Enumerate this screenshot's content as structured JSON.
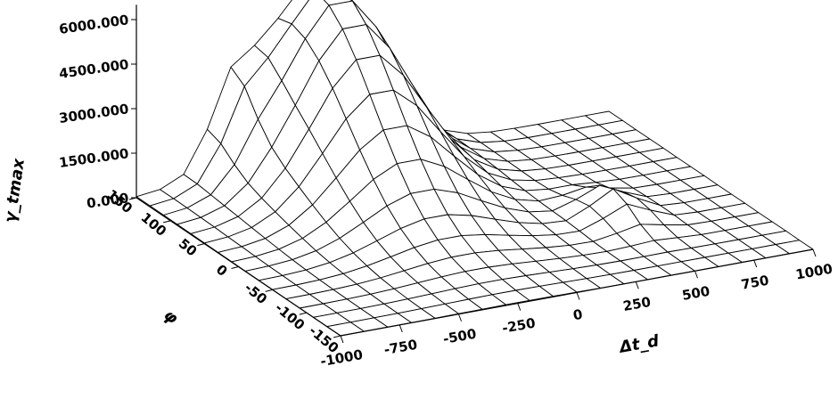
{
  "chart_data": {
    "type": "surface",
    "title": "",
    "zlabel": "γ_tmax",
    "xlabel": "Δt_d",
    "ylabel": "φ",
    "zlim": [
      0,
      6500
    ],
    "xlim": [
      -1000,
      1000
    ],
    "ylim": [
      -150,
      150
    ],
    "z_ticks": [
      "0.000",
      "1500.000",
      "3000.000",
      "4500.000",
      "6000.000"
    ],
    "x_ticks": [
      "-1000",
      "-750",
      "-500",
      "-250",
      "0",
      "250",
      "500",
      "750",
      "1000"
    ],
    "y_ticks": [
      "-150",
      "-100",
      "-50",
      "0",
      "50",
      "100",
      "150"
    ],
    "grid_x": [
      -1000,
      -900,
      -800,
      -700,
      -600,
      -500,
      -400,
      -300,
      -200,
      -100,
      0,
      100,
      200,
      300,
      400,
      500,
      600,
      700,
      800,
      900,
      1000
    ],
    "grid_y": [
      -150,
      -130,
      -110,
      -90,
      -70,
      -50,
      -30,
      -10,
      10,
      30,
      50,
      70,
      90,
      110,
      130,
      150
    ],
    "peak": {
      "x": -250,
      "y": 130,
      "z": 6400
    },
    "secondary_peaks": [
      {
        "x": -600,
        "y": 150,
        "z": 1800
      },
      {
        "x": 500,
        "y": -30,
        "z": 900
      }
    ],
    "mesh_color": "#000000",
    "grid": true
  }
}
